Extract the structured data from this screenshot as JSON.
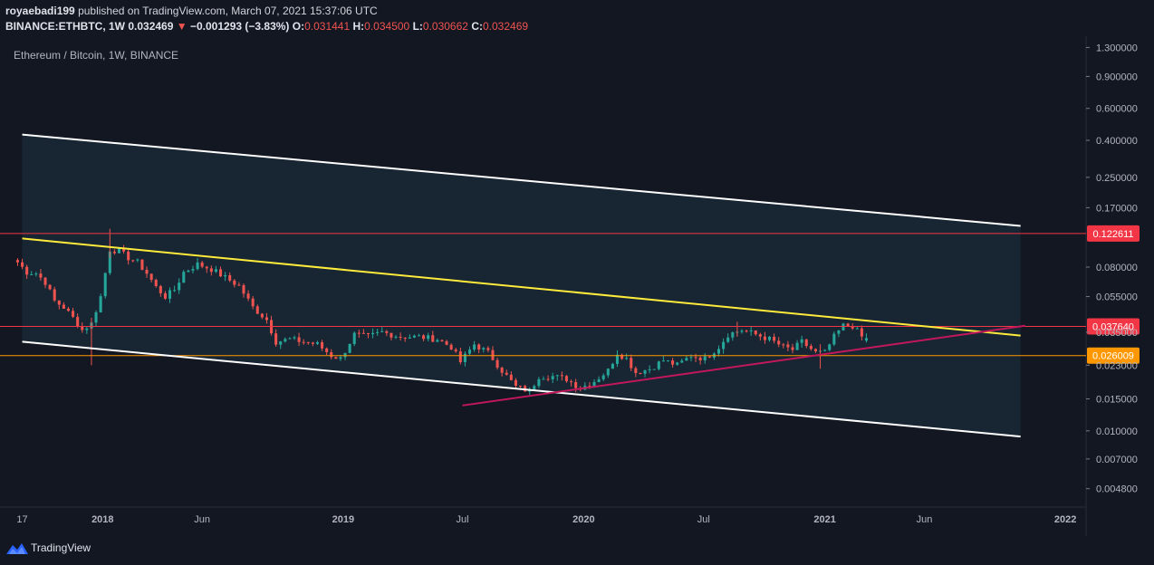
{
  "header": {
    "publisher": "royaebadi199",
    "published_text": "published on TradingView.com, March 07, 2021 15:37:06 UTC",
    "symbol": "BINANCE:ETHBTC, 1W",
    "last_price": "0.032469",
    "change_arrow": "▼",
    "change": "−0.001293 (−3.83%)",
    "o_label": "O:",
    "o_value": "0.031441",
    "h_label": "H:",
    "h_value": "0.034500",
    "l_label": "L:",
    "l_value": "0.030662",
    "c_label": "C:",
    "c_value": "0.032469"
  },
  "footer": {
    "brand": "TradingView"
  },
  "colors": {
    "background": "#131722",
    "up": "#26a69a",
    "down": "#ef5350",
    "channel": "#ffffff",
    "yellow": "#ffeb3b",
    "magenta": "#c2185b",
    "level_red": "#f23645",
    "level_orange": "#ff9800",
    "channel_fill": "#1c3340"
  },
  "icons": {
    "logo": "tradingview-logo-icon"
  },
  "chart_data": {
    "type": "candlestick",
    "title": "Ethereum / Bitcoin, 1W, BINANCE",
    "y_scale": "log",
    "ylim": [
      0.0038,
      1.5
    ],
    "xlim": [
      "2017-08-01",
      "2022-01-31"
    ],
    "y_ticks": [
      "1.300000",
      "0.900000",
      "0.600000",
      "0.400000",
      "0.250000",
      "0.170000",
      "0.080000",
      "0.055000",
      "0.035000",
      "0.023000",
      "0.015000",
      "0.010000",
      "0.007000",
      "0.004800"
    ],
    "x_ticks": [
      {
        "label": "17",
        "date": "2017-09-01"
      },
      {
        "label": "2018",
        "date": "2018-01-01"
      },
      {
        "label": "Jun",
        "date": "2018-06-01"
      },
      {
        "label": "2019",
        "date": "2019-01-01"
      },
      {
        "label": "Jul",
        "date": "2019-07-01"
      },
      {
        "label": "2020",
        "date": "2020-01-01"
      },
      {
        "label": "Jul",
        "date": "2020-07-01"
      },
      {
        "label": "2021",
        "date": "2021-01-01"
      },
      {
        "label": "Jun",
        "date": "2021-06-01"
      },
      {
        "label": "2022",
        "date": "2022-01-01"
      }
    ],
    "price_levels": [
      {
        "label": "0.122611",
        "value": 0.122611,
        "color": "#f23645"
      },
      {
        "label": "0.037640",
        "value": 0.03764,
        "color": "#f23645"
      },
      {
        "label": "0.026009",
        "value": 0.026009,
        "color": "#ff9800"
      }
    ],
    "trend_lines": [
      {
        "name": "channel-upper",
        "color": "#ffffff",
        "start": [
          "2017-09-01",
          0.43
        ],
        "end": [
          "2021-10-25",
          0.135
        ]
      },
      {
        "name": "channel-lower",
        "color": "#ffffff",
        "start": [
          "2017-09-01",
          0.031
        ],
        "end": [
          "2021-10-25",
          0.0093
        ]
      },
      {
        "name": "yellow-resistance",
        "color": "#ffeb3b",
        "start": [
          "2017-09-01",
          0.115
        ],
        "end": [
          "2021-10-25",
          0.0335
        ]
      },
      {
        "name": "magenta-support",
        "color": "#c2185b",
        "start": [
          "2019-07-01",
          0.0138
        ],
        "end": [
          "2021-11-01",
          0.038
        ]
      }
    ],
    "channel_fill": {
      "start": "2017-09-01",
      "end": "2021-10-25"
    },
    "series": [
      {
        "name": "ETHBTC",
        "anchors": [
          [
            "2017-08-25",
            0.085
          ],
          [
            "2017-09-08",
            0.075
          ],
          [
            "2017-09-22",
            0.074
          ],
          [
            "2017-10-06",
            0.066
          ],
          [
            "2017-10-20",
            0.052
          ],
          [
            "2017-11-03",
            0.048
          ],
          [
            "2017-11-17",
            0.042
          ],
          [
            "2017-12-01",
            0.036
          ],
          [
            "2017-12-15",
            0.039
          ],
          [
            "2017-12-29",
            0.055
          ],
          [
            "2018-01-12",
            0.1
          ],
          [
            "2018-01-26",
            0.098
          ],
          [
            "2018-02-09",
            0.09
          ],
          [
            "2018-02-23",
            0.085
          ],
          [
            "2018-03-09",
            0.074
          ],
          [
            "2018-03-23",
            0.062
          ],
          [
            "2018-04-06",
            0.055
          ],
          [
            "2018-04-20",
            0.06
          ],
          [
            "2018-05-04",
            0.075
          ],
          [
            "2018-05-25",
            0.083
          ],
          [
            "2018-06-15",
            0.078
          ],
          [
            "2018-07-06",
            0.07
          ],
          [
            "2018-07-27",
            0.063
          ],
          [
            "2018-08-17",
            0.048
          ],
          [
            "2018-09-07",
            0.041
          ],
          [
            "2018-09-21",
            0.031
          ],
          [
            "2018-10-12",
            0.032
          ],
          [
            "2018-11-02",
            0.031
          ],
          [
            "2018-11-23",
            0.03
          ],
          [
            "2018-12-14",
            0.026
          ],
          [
            "2018-12-28",
            0.025
          ],
          [
            "2019-01-18",
            0.034
          ],
          [
            "2019-02-08",
            0.033
          ],
          [
            "2019-03-01",
            0.035
          ],
          [
            "2019-03-29",
            0.033
          ],
          [
            "2019-04-26",
            0.033
          ],
          [
            "2019-05-24",
            0.032
          ],
          [
            "2019-06-14",
            0.029
          ],
          [
            "2019-06-28",
            0.024
          ],
          [
            "2019-07-19",
            0.03
          ],
          [
            "2019-08-09",
            0.027
          ],
          [
            "2019-08-30",
            0.0215
          ],
          [
            "2019-09-20",
            0.0175
          ],
          [
            "2019-10-11",
            0.0165
          ],
          [
            "2019-10-25",
            0.02
          ],
          [
            "2019-11-15",
            0.02
          ],
          [
            "2019-12-06",
            0.0193
          ],
          [
            "2019-12-27",
            0.0172
          ],
          [
            "2020-01-17",
            0.0188
          ],
          [
            "2020-02-07",
            0.0215
          ],
          [
            "2020-02-21",
            0.027
          ],
          [
            "2020-03-06",
            0.025
          ],
          [
            "2020-03-20",
            0.021
          ],
          [
            "2020-04-10",
            0.022
          ],
          [
            "2020-05-01",
            0.0245
          ],
          [
            "2020-05-22",
            0.023
          ],
          [
            "2020-06-12",
            0.026
          ],
          [
            "2020-07-03",
            0.025
          ],
          [
            "2020-07-24",
            0.029
          ],
          [
            "2020-08-07",
            0.034
          ],
          [
            "2020-08-28",
            0.036
          ],
          [
            "2020-09-18",
            0.034
          ],
          [
            "2020-10-09",
            0.032
          ],
          [
            "2020-10-30",
            0.029
          ],
          [
            "2020-11-13",
            0.028
          ],
          [
            "2020-11-27",
            0.031
          ],
          [
            "2020-12-18",
            0.027
          ],
          [
            "2021-01-01",
            0.027
          ],
          [
            "2021-01-15",
            0.033
          ],
          [
            "2021-01-29",
            0.038
          ],
          [
            "2021-02-12",
            0.038
          ],
          [
            "2021-02-26",
            0.033
          ],
          [
            "2021-03-05",
            0.032469
          ]
        ]
      }
    ],
    "last_candle": {
      "date": "2021-03-01",
      "open": 0.031441,
      "high": 0.0345,
      "low": 0.030662,
      "close": 0.032469
    }
  }
}
